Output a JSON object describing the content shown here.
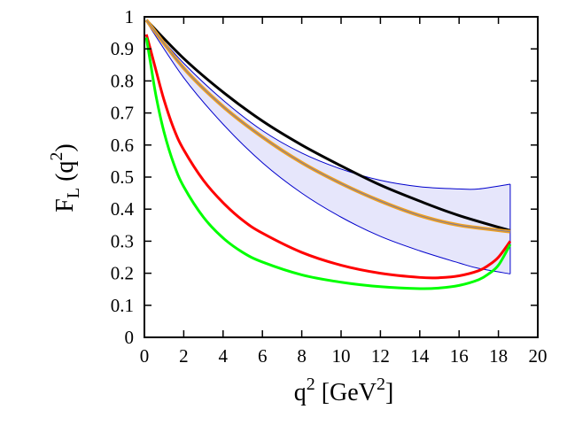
{
  "chart_data": {
    "type": "line",
    "xlabel": "q",
    "xlabel_sup": "2",
    "xlabel_unit_open": " [GeV",
    "xlabel_unit_sup": "2",
    "xlabel_unit_close": "]",
    "ylabel_main": "F",
    "ylabel_sub": "L",
    "ylabel_open": " (q",
    "ylabel_sup": "2",
    "ylabel_close": ")",
    "xlim": [
      0,
      20
    ],
    "ylim": [
      0,
      1
    ],
    "xticks": [
      "0",
      "2",
      "4",
      "6",
      "8",
      "10",
      "12",
      "14",
      "16",
      "18",
      "20"
    ],
    "yticks": [
      "0",
      "0.1",
      "0.2",
      "0.3",
      "0.4",
      "0.5",
      "0.6",
      "0.7",
      "0.8",
      "0.9",
      "1"
    ],
    "grid": false,
    "legend": "none",
    "band": {
      "color": "#0000cc",
      "fill": "#e6e6fb",
      "x": [
        0.1,
        2,
        4,
        6,
        8,
        10,
        12,
        14,
        16,
        17,
        18.6
      ],
      "upper": [
        0.985,
        0.855,
        0.74,
        0.645,
        0.575,
        0.525,
        0.49,
        0.47,
        0.463,
        0.463,
        0.478
      ],
      "lower": [
        0.985,
        0.81,
        0.665,
        0.545,
        0.45,
        0.375,
        0.315,
        0.27,
        0.232,
        0.215,
        0.198
      ]
    },
    "series": [
      {
        "color": "#000000",
        "x": [
          0.1,
          2,
          4,
          6,
          8,
          10,
          12,
          14,
          16,
          18.6
        ],
        "values": [
          0.99,
          0.87,
          0.765,
          0.675,
          0.6,
          0.535,
          0.475,
          0.425,
          0.38,
          0.333
        ]
      },
      {
        "color": "#f0a020",
        "x": [
          0.1,
          2,
          4,
          6,
          8,
          10,
          12,
          14,
          16,
          18.6
        ],
        "values": [
          0.99,
          0.84,
          0.72,
          0.625,
          0.545,
          0.48,
          0.425,
          0.38,
          0.35,
          0.33
        ]
      },
      {
        "color": "#ff0000",
        "x": [
          0.1,
          0.3,
          0.6,
          1,
          1.5,
          2,
          3,
          4,
          5,
          6,
          8,
          10,
          12,
          14,
          15,
          16,
          17,
          17.5,
          18,
          18.6
        ],
        "values": [
          0.945,
          0.9,
          0.83,
          0.74,
          0.65,
          0.585,
          0.49,
          0.42,
          0.365,
          0.325,
          0.265,
          0.225,
          0.2,
          0.187,
          0.186,
          0.192,
          0.208,
          0.225,
          0.25,
          0.3
        ]
      },
      {
        "color": "#00ff00",
        "x": [
          0.1,
          0.3,
          0.6,
          1,
          1.5,
          2,
          3,
          4,
          5,
          6,
          8,
          10,
          12,
          14,
          15,
          16,
          17,
          17.5,
          18,
          18.6
        ],
        "values": [
          0.935,
          0.86,
          0.75,
          0.64,
          0.54,
          0.47,
          0.375,
          0.31,
          0.265,
          0.235,
          0.195,
          0.172,
          0.158,
          0.152,
          0.154,
          0.162,
          0.18,
          0.198,
          0.225,
          0.29
        ]
      }
    ]
  }
}
